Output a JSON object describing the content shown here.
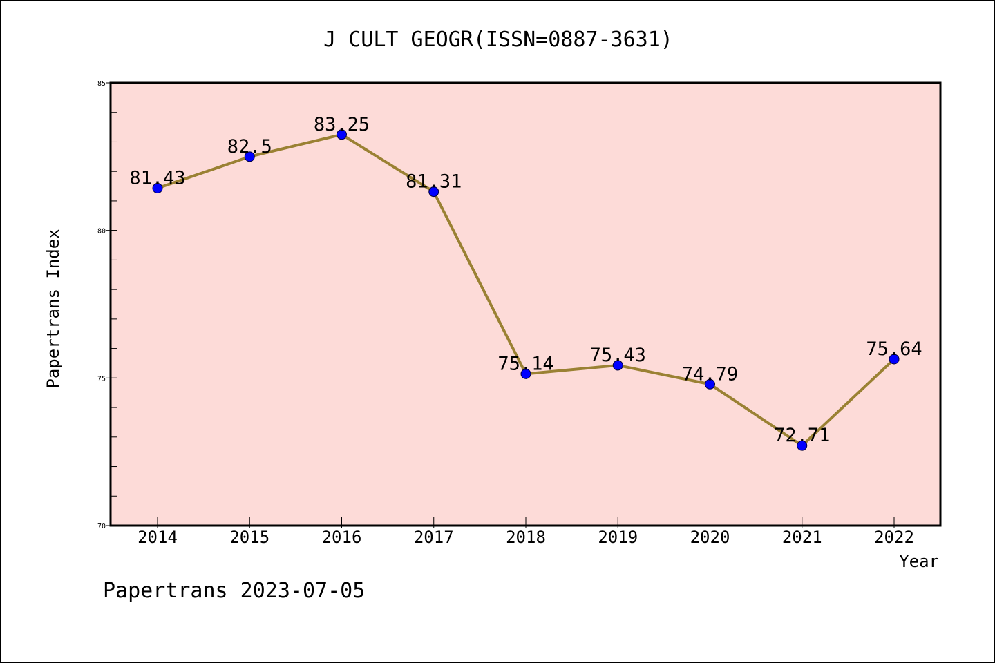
{
  "chart_data": {
    "type": "line",
    "title": "J CULT GEOGR(ISSN=0887-3631)",
    "xlabel": "Year",
    "ylabel": "Papertrans Index",
    "categories": [
      "2014",
      "2015",
      "2016",
      "2017",
      "2018",
      "2019",
      "2020",
      "2021",
      "2022"
    ],
    "series": [
      {
        "values": [
          81.43,
          82.5,
          83.25,
          81.31,
          75.14,
          75.43,
          74.79,
          72.71,
          75.64
        ],
        "labels": [
          "81.43",
          "82.5",
          "83.25",
          "81.31",
          "75.14",
          "75.43",
          "74.79",
          "72.71",
          "75.64"
        ]
      }
    ],
    "ylim": [
      70,
      85
    ],
    "yticks": [
      "70",
      "75",
      "80",
      "85"
    ],
    "grid": false,
    "colors": {
      "plot_background": "#fddbd8",
      "line": "#9a8133",
      "marker": "#0000ff",
      "axis": "#000000"
    }
  },
  "footer": "Papertrans 2023-07-05"
}
